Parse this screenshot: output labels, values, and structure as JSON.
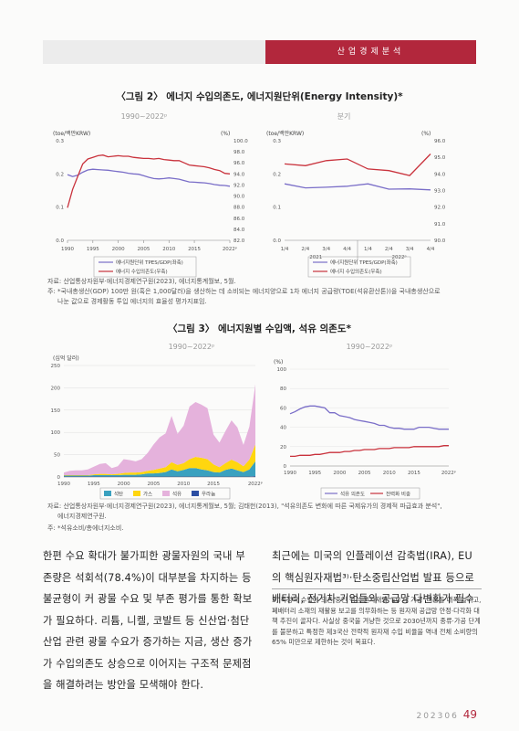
{
  "header": {
    "section": "산업경제분석"
  },
  "fig2": {
    "title": "〈그림 2〉 에너지 수입의존도, 에너지원단위(Energy Intensity)*",
    "left": {
      "subtitle": "1990~2022ᵖ",
      "y_left_label": "(toe/백만KRW)",
      "y_right_label": "(%)",
      "x_ticks": [
        "1990",
        "1995",
        "2000",
        "2005",
        "2010",
        "2015",
        "2022ᵖ"
      ],
      "y_left_ticks": [
        "0.0",
        "0.1",
        "0.2",
        "0.3"
      ],
      "y_right_ticks": [
        "82.0",
        "84.0",
        "86.0",
        "88.0",
        "90.0",
        "92.0",
        "94.0",
        "96.0",
        "98.0",
        "100.0"
      ],
      "legend": [
        "에너지원단위 TPES/GDP(좌축)",
        "에너지 수입의존도(우축)"
      ]
    },
    "right": {
      "subtitle": "분기",
      "y_left_label": "(toe/백만KRW)",
      "y_right_label": "(%)",
      "x_ticks": [
        "1/4",
        "2/4",
        "3/4",
        "4/4",
        "1/4",
        "2/4",
        "3/4",
        "4/4"
      ],
      "x_years": [
        "2021",
        "2022ᵖ"
      ],
      "y_left_ticks": [
        "0.0",
        "0.1",
        "0.2",
        "0.3"
      ],
      "y_right_ticks": [
        "90.0",
        "91.0",
        "92.0",
        "93.0",
        "94.0",
        "95.0",
        "96.0"
      ],
      "legend": [
        "에너지원단위 TPES/GDP(좌축)",
        "에너지 수입의존도(우축)"
      ]
    },
    "source": "자료: 산업통상자원부·에너지경제연구원(2023), 에너지통계월보, 5월.",
    "note": "주: *국내총생산(GDP) 100만 원(혹은 1,000달러)을 생산하는 데 소비되는 에너지양으로 1차 에너지 공급량(TOE(석유환산톤))을 국내총생산으로",
    "note2": "나눈 값으로 경제활동 투입 에너지의 효율성 평가지표임."
  },
  "fig3": {
    "title": "〈그림 3〉 에너지원별 수입액, 석유 의존도*",
    "left": {
      "subtitle": "1990~2022ᵖ",
      "y_label": "(십억 달러)",
      "y_ticks": [
        "0",
        "50",
        "100",
        "150",
        "200",
        "250"
      ],
      "x_ticks": [
        "1990",
        "1995",
        "2000",
        "2005",
        "2010",
        "2015",
        "2022ᵖ"
      ],
      "legend": [
        "석탄",
        "가스",
        "석유",
        "우라늄"
      ]
    },
    "right": {
      "subtitle": "1990~2022ᵖ",
      "y_label": "(%)",
      "y_ticks": [
        "0",
        "20",
        "40",
        "60",
        "80",
        "100"
      ],
      "x_ticks": [
        "1990",
        "1995",
        "2000",
        "2005",
        "2010",
        "2015",
        "2022ᵖ"
      ],
      "legend": [
        "석유 의존도",
        "전력화 비중"
      ]
    },
    "source": "자료: 산업통상자원부·에너지경제연구원(2023), 에너지통계월보, 5월; 김태헌(2013), \"석유의존도 변화에 따른 국제유가의 경제적 파급효과 분석\",",
    "source2": "에너지경제연구원.",
    "note": "주: *석유소비/총에너지소비."
  },
  "body": {
    "left_lines": [
      "한편 수요 확대가 불가피한 광물자원의 국내 부",
      "존량은 석회석(78.4%)이 대부분을 차지하는 등",
      "불균형이 커 광물 수요 및 부존 평가를 통한 확보",
      "가 필요하다. 리튬, 니켈, 코발트 등 신산업·첨단",
      "산업 관련 광물 수요가 증가하는 지금, 생산 증가",
      "가 수입의존도 상승으로 이어지는 구조적 문제점",
      "을 해결하려는 방안을 모색해야 한다."
    ],
    "right_lines": [
      "최근에는 미국의 인플레이션 감축법(IRA), EU",
      "의 핵심원자재법³⁾·탄소중립산업법 발표 등으로",
      "배터리, 전기차 기업들의 공급망 다변화가 필수"
    ]
  },
  "footnote": "3) 특정국 수입에 의존 중인 핵심 원자재의 'EU 내 가공' 비중을 대폭 늘리고, 폐배터리 소재의 재활용 보고를 의무화하는 등 원자재 공급망 안정·다각화 대책 추진이 골자다. 사실상 중국을 겨냥한 것으로 2030년까지 종류·가공 단계를 불문하고 특정한 제3국산 전략적 원자재 수입 비율을 역내 전체 소비량의 65% 미만으로 제한하는 것이 목표다.",
  "page": {
    "issue": "202306",
    "number": "49"
  },
  "chart_data": [
    {
      "type": "line",
      "title": "1990~2022ᵖ",
      "x": [
        1990,
        1991,
        1992,
        1993,
        1994,
        1995,
        1996,
        1997,
        1998,
        1999,
        2000,
        2001,
        2002,
        2003,
        2004,
        2005,
        2006,
        2007,
        2008,
        2009,
        2010,
        2011,
        2012,
        2013,
        2014,
        2015,
        2016,
        2017,
        2018,
        2019,
        2020,
        2021,
        2022
      ],
      "series": [
        {
          "name": "에너지원단위 TPES/GDP(좌축)",
          "axis": "left",
          "values": [
            0.198,
            0.192,
            0.196,
            0.205,
            0.212,
            0.214,
            0.213,
            0.212,
            0.211,
            0.209,
            0.207,
            0.205,
            0.202,
            0.2,
            0.199,
            0.195,
            0.19,
            0.186,
            0.185,
            0.186,
            0.188,
            0.186,
            0.184,
            0.18,
            0.176,
            0.175,
            0.174,
            0.173,
            0.171,
            0.168,
            0.166,
            0.165,
            0.163
          ]
        },
        {
          "name": "에너지 수입의존도(우축)",
          "axis": "right",
          "values": [
            87.9,
            91.2,
            93.5,
            95.8,
            96.7,
            97.0,
            97.3,
            97.4,
            97.1,
            97.2,
            97.3,
            97.2,
            97.2,
            97.0,
            96.9,
            96.8,
            96.8,
            96.7,
            96.8,
            96.6,
            96.5,
            96.4,
            96.4,
            96.0,
            95.6,
            95.5,
            95.4,
            95.3,
            95.1,
            94.8,
            94.6,
            94.1,
            94.0
          ]
        }
      ],
      "ylim_left": [
        0,
        0.3
      ],
      "ylim_right": [
        82,
        100
      ]
    },
    {
      "type": "line",
      "title": "분기",
      "x": [
        "2021 1/4",
        "2021 2/4",
        "2021 3/4",
        "2021 4/4",
        "2022 1/4",
        "2022 2/4",
        "2022 3/4",
        "2022 4/4"
      ],
      "series": [
        {
          "name": "에너지원단위 TPES/GDP(좌축)",
          "axis": "left",
          "values": [
            0.17,
            0.158,
            0.16,
            0.163,
            0.17,
            0.154,
            0.155,
            0.152
          ]
        },
        {
          "name": "에너지 수입의존도(우축)",
          "axis": "right",
          "values": [
            94.6,
            94.5,
            94.8,
            94.9,
            94.3,
            94.2,
            93.9,
            95.2
          ]
        }
      ],
      "ylim_left": [
        0,
        0.3
      ],
      "ylim_right": [
        90,
        96
      ]
    },
    {
      "type": "area",
      "title": "1990~2022ᵖ",
      "x": [
        1990,
        1991,
        1992,
        1993,
        1994,
        1995,
        1996,
        1997,
        1998,
        1999,
        2000,
        2001,
        2002,
        2003,
        2004,
        2005,
        2006,
        2007,
        2008,
        2009,
        2010,
        2011,
        2012,
        2013,
        2014,
        2015,
        2016,
        2017,
        2018,
        2019,
        2020,
        2021,
        2022
      ],
      "series": [
        {
          "name": "우라늄",
          "values": [
            1,
            1,
            1,
            1,
            1,
            1,
            1,
            1,
            1,
            1,
            1,
            1,
            1,
            1,
            1,
            1,
            1,
            1,
            1,
            1,
            1,
            1,
            1,
            1,
            1,
            1,
            1,
            1,
            1,
            1,
            1,
            1,
            2
          ]
        },
        {
          "name": "석탄",
          "values": [
            2,
            2,
            2,
            2,
            2,
            3,
            3,
            3,
            3,
            3,
            4,
            4,
            4,
            5,
            7,
            7,
            8,
            10,
            16,
            12,
            15,
            19,
            19,
            16,
            14,
            10,
            9,
            15,
            18,
            14,
            10,
            16,
            33
          ]
        },
        {
          "name": "가스",
          "values": [
            1,
            1,
            1,
            1,
            1,
            2,
            3,
            3,
            2,
            3,
            4,
            5,
            5,
            5,
            6,
            8,
            10,
            11,
            16,
            14,
            15,
            20,
            25,
            26,
            25,
            17,
            12,
            15,
            20,
            18,
            13,
            22,
            38
          ]
        },
        {
          "name": "석유",
          "values": [
            6,
            10,
            11,
            11,
            13,
            17,
            22,
            24,
            14,
            17,
            31,
            28,
            25,
            29,
            40,
            57,
            70,
            76,
            104,
            70,
            84,
            118,
            123,
            119,
            114,
            67,
            55,
            72,
            88,
            78,
            48,
            74,
            135
          ]
        }
      ],
      "ylim": [
        0,
        250
      ]
    },
    {
      "type": "line",
      "title": "1990~2022ᵖ",
      "x": [
        1990,
        1991,
        1992,
        1993,
        1994,
        1995,
        1996,
        1997,
        1998,
        1999,
        2000,
        2001,
        2002,
        2003,
        2004,
        2005,
        2006,
        2007,
        2008,
        2009,
        2010,
        2011,
        2012,
        2013,
        2014,
        2015,
        2016,
        2017,
        2018,
        2019,
        2020,
        2021,
        2022
      ],
      "series": [
        {
          "name": "석유 의존도",
          "values": [
            54,
            56,
            59,
            61,
            62,
            62,
            61,
            60,
            55,
            55,
            52,
            51,
            50,
            48,
            47,
            46,
            45,
            44,
            42,
            42,
            40,
            39,
            39,
            38,
            38,
            38,
            40,
            40,
            40,
            39,
            38,
            38,
            38
          ]
        },
        {
          "name": "전력화 비중",
          "values": [
            10,
            10,
            11,
            11,
            11,
            12,
            12,
            13,
            14,
            14,
            14,
            15,
            15,
            16,
            16,
            17,
            17,
            17,
            18,
            18,
            18,
            19,
            19,
            19,
            19,
            20,
            20,
            20,
            20,
            20,
            20,
            21,
            21
          ]
        }
      ],
      "ylim": [
        0,
        100
      ]
    }
  ]
}
